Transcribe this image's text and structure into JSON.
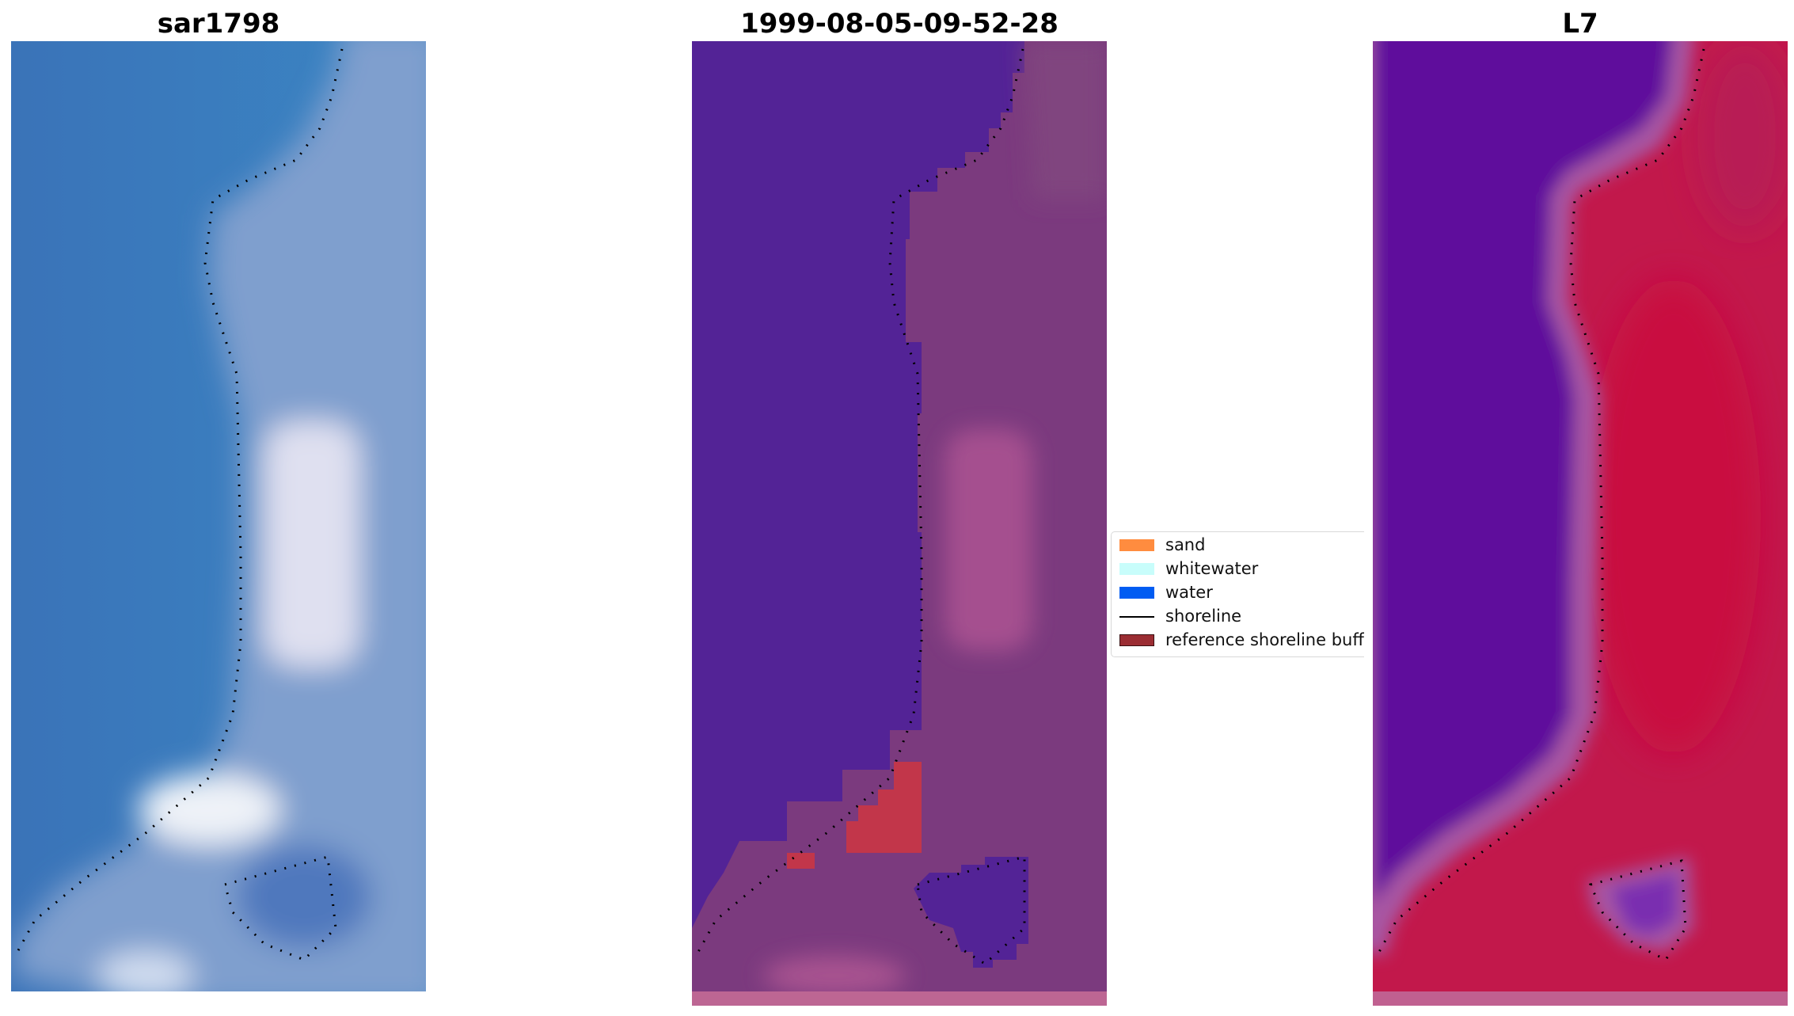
{
  "panels": [
    {
      "id": "rgb",
      "title": "sar1798"
    },
    {
      "id": "classified",
      "title": "1999-08-05-09-52-28"
    },
    {
      "id": "index",
      "title": "L7"
    }
  ],
  "legend": {
    "items": [
      {
        "label": "sand",
        "color": "#ff8c3f",
        "kind": "patch"
      },
      {
        "label": "whitewater",
        "color": "#c8fdfb",
        "kind": "patch"
      },
      {
        "label": "water",
        "color": "#005cf2",
        "kind": "patch"
      },
      {
        "label": "shoreline",
        "color": "#000000",
        "kind": "line"
      },
      {
        "label": "reference shoreline buffer",
        "color": "#9b2d33",
        "kind": "patch"
      }
    ]
  },
  "colors": {
    "rgb_water": "#3f7fbe",
    "rgb_land": "#7e9fcd",
    "rgb_bright": "#e6e9f5",
    "class_water": "#532396",
    "class_land": "#7d3a7f",
    "class_sand": "#c2364a",
    "index_water": "#5e0e9c",
    "index_land": "#c0174a",
    "index_edge": "#a856a3"
  }
}
